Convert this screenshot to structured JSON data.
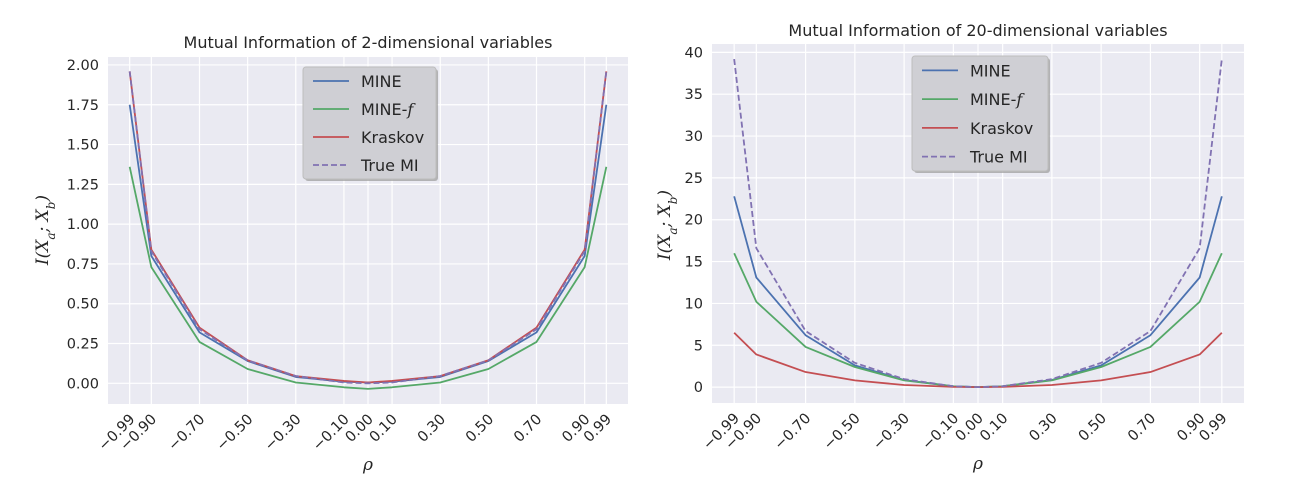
{
  "chart_data": [
    {
      "type": "line",
      "title": "Mutual Information of 2-dimensional variables",
      "xlabel": "ρ",
      "ylabel": "I(X_a; X_b)",
      "x": [
        -0.99,
        -0.9,
        -0.7,
        -0.5,
        -0.3,
        -0.1,
        0.0,
        0.1,
        0.3,
        0.5,
        0.7,
        0.9,
        0.99
      ],
      "xtick_labels": [
        "−0.99",
        "−0.90",
        "−0.70",
        "−0.50",
        "−0.30",
        "−0.10",
        "0.00",
        "0.10",
        "0.30",
        "0.50",
        "0.70",
        "0.90",
        "0.99"
      ],
      "ylim": [
        -0.13,
        2.05
      ],
      "yticks": [
        0.0,
        0.25,
        0.5,
        0.75,
        1.0,
        1.25,
        1.5,
        1.75,
        2.0
      ],
      "ytick_labels": [
        "0.00",
        "0.25",
        "0.50",
        "0.75",
        "1.00",
        "1.25",
        "1.50",
        "1.75",
        "2.00"
      ],
      "grid": true,
      "legend_position": "top-center",
      "series": [
        {
          "name": "MINE",
          "color": "#4c72b0",
          "dash": false,
          "values": [
            1.75,
            0.8,
            0.32,
            0.14,
            0.04,
            0.01,
            0.005,
            0.01,
            0.04,
            0.14,
            0.32,
            0.8,
            1.75
          ]
        },
        {
          "name": "MINE-f",
          "color": "#55a868",
          "dash": false,
          "values": [
            1.36,
            0.73,
            0.26,
            0.09,
            0.005,
            -0.025,
            -0.035,
            -0.025,
            0.005,
            0.09,
            0.26,
            0.73,
            1.36
          ]
        },
        {
          "name": "Kraskov",
          "color": "#c44e52",
          "dash": false,
          "values": [
            1.96,
            0.84,
            0.35,
            0.145,
            0.045,
            0.015,
            0.005,
            0.015,
            0.045,
            0.145,
            0.35,
            0.84,
            1.96
          ]
        },
        {
          "name": "True MI",
          "color": "#8172b2",
          "dash": true,
          "values": [
            1.96,
            0.83,
            0.34,
            0.144,
            0.046,
            0.005,
            0.0,
            0.005,
            0.046,
            0.144,
            0.34,
            0.83,
            1.96
          ]
        }
      ]
    },
    {
      "type": "line",
      "title": "Mutual Information of 20-dimensional variables",
      "xlabel": "ρ",
      "ylabel": "I(X_a; X_b)",
      "x": [
        -0.99,
        -0.9,
        -0.7,
        -0.5,
        -0.3,
        -0.1,
        0.0,
        0.1,
        0.3,
        0.5,
        0.7,
        0.9,
        0.99
      ],
      "xtick_labels": [
        "−0.99",
        "−0.90",
        "−0.70",
        "−0.50",
        "−0.30",
        "−0.10",
        "0.00",
        "0.10",
        "0.30",
        "0.50",
        "0.70",
        "0.90",
        "0.99"
      ],
      "ylim": [
        -1.9,
        41.0
      ],
      "yticks": [
        0,
        5,
        10,
        15,
        20,
        25,
        30,
        35,
        40
      ],
      "ytick_labels": [
        "0",
        "5",
        "10",
        "15",
        "20",
        "25",
        "30",
        "35",
        "40"
      ],
      "grid": true,
      "legend_position": "top-center",
      "series": [
        {
          "name": "MINE",
          "color": "#4c72b0",
          "dash": false,
          "values": [
            22.8,
            13.1,
            6.2,
            2.6,
            0.85,
            0.1,
            0.0,
            0.1,
            0.85,
            2.6,
            6.2,
            13.1,
            22.8
          ]
        },
        {
          "name": "MINE-f",
          "color": "#55a868",
          "dash": false,
          "values": [
            16.0,
            10.2,
            4.8,
            2.4,
            0.8,
            0.1,
            0.0,
            0.1,
            0.8,
            2.4,
            4.8,
            10.2,
            16.0
          ]
        },
        {
          "name": "Kraskov",
          "color": "#c44e52",
          "dash": false,
          "values": [
            6.5,
            3.9,
            1.8,
            0.8,
            0.25,
            0.03,
            0.0,
            0.03,
            0.25,
            0.8,
            1.8,
            3.9,
            6.5
          ]
        },
        {
          "name": "True MI",
          "color": "#8172b2",
          "dash": true,
          "values": [
            39.2,
            16.6,
            6.7,
            2.9,
            0.95,
            0.1,
            0.0,
            0.1,
            0.95,
            2.9,
            6.7,
            16.6,
            39.2
          ]
        }
      ]
    }
  ]
}
